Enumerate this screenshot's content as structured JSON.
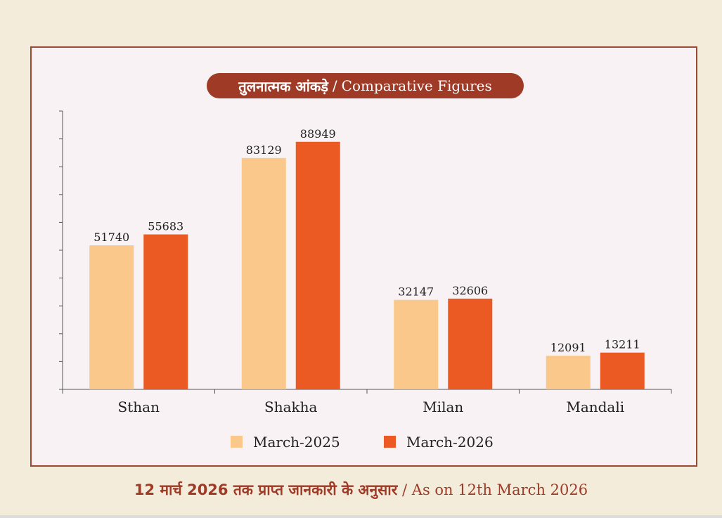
{
  "title": {
    "hindi": "तुलनात्मक आंकड़े",
    "separator": "/",
    "english": "Comparative Figures"
  },
  "footer": {
    "hindi": "12 मार्च 2026 तक प्राप्त जानकारी के अनुसार",
    "separator": "/",
    "english": "As on 12th March 2026"
  },
  "colors": {
    "series_2025": "#f9c88a",
    "series_2026": "#ec5a24",
    "accent": "#9e3a26"
  },
  "chart_data": {
    "type": "bar",
    "title": "तुलनात्मक आंकड़े / Comparative Figures",
    "categories": [
      "Sthan",
      "Shakha",
      "Milan",
      "Mandali"
    ],
    "series": [
      {
        "name": "March-2025",
        "values": [
          51740,
          83129,
          32147,
          12091
        ]
      },
      {
        "name": "March-2026",
        "values": [
          55683,
          88949,
          32606,
          13211
        ]
      }
    ],
    "xlabel": "",
    "ylabel": "",
    "ylim": [
      0,
      100000
    ],
    "legend": "bottom-center",
    "grid": false
  }
}
